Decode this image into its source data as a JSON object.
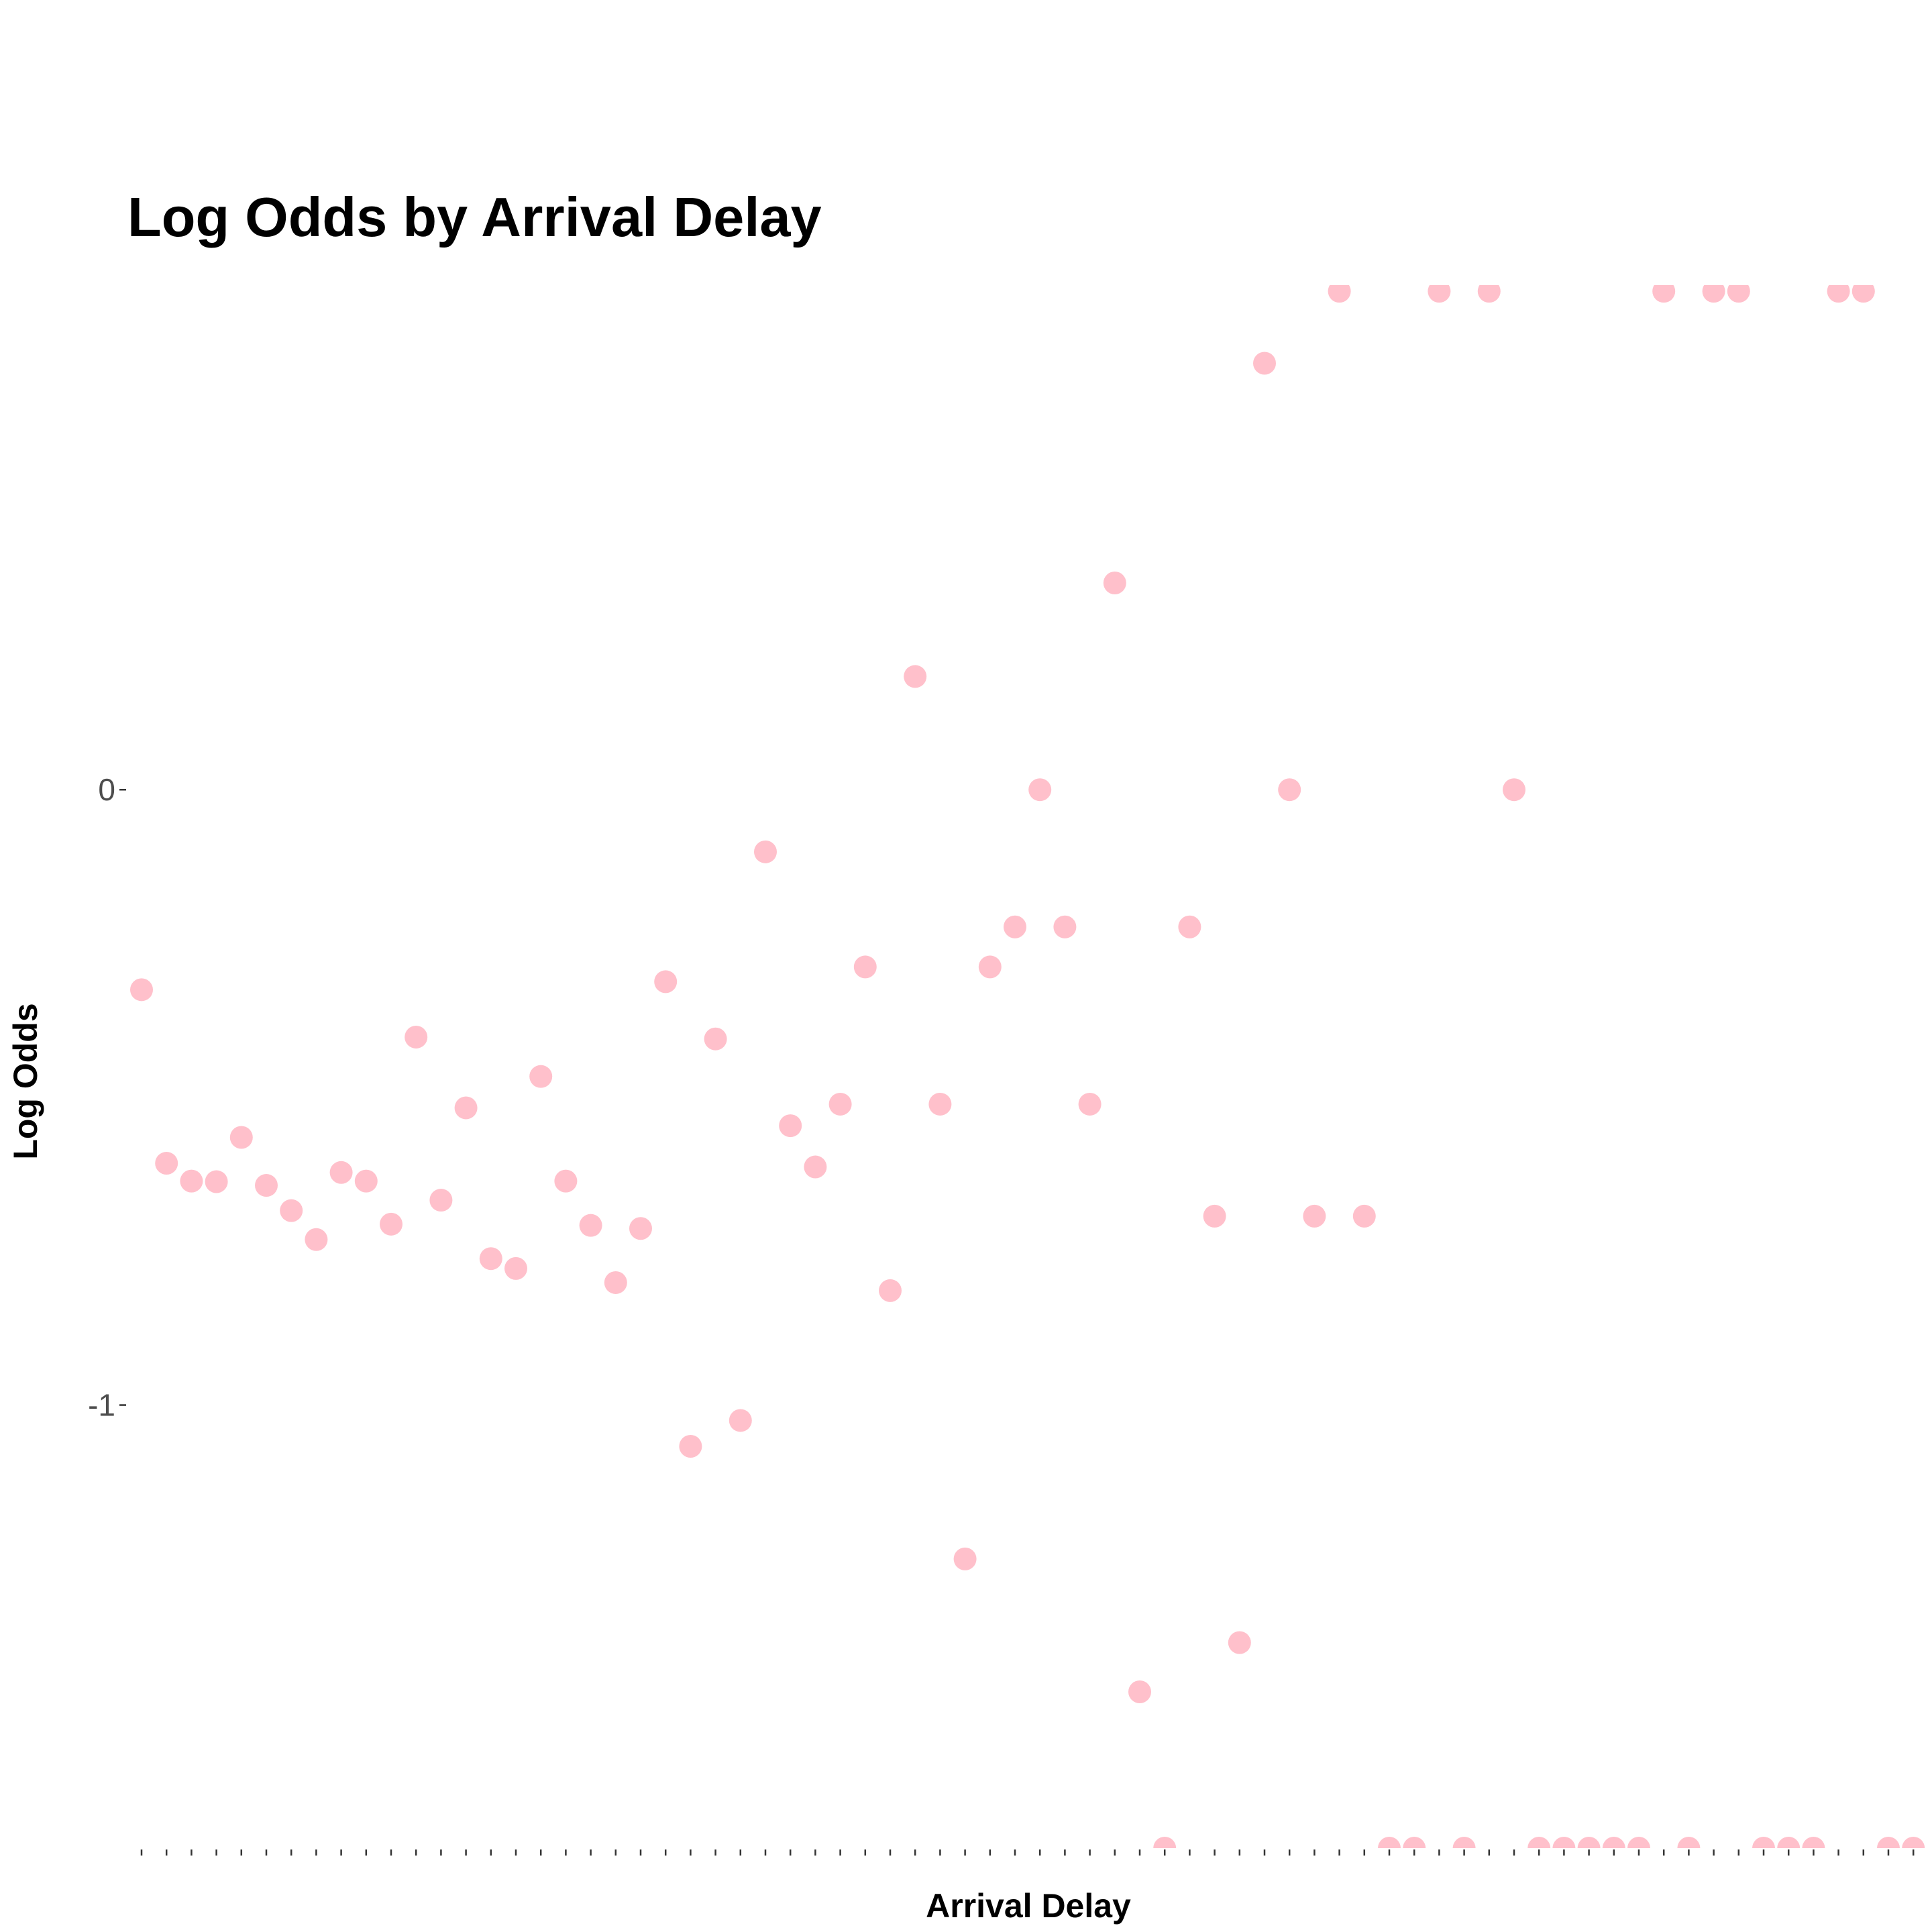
{
  "chart_data": {
    "type": "scatter",
    "title": "Log Odds by Arrival Delay",
    "xlabel": "Arrival Delay",
    "ylabel": "Log Odds",
    "x_tick_labels_shown": false,
    "x_categories_count": 72,
    "ylim": [
      -1.72,
      0.82
    ],
    "y_ticks": [
      {
        "value": 0,
        "label": "0"
      },
      {
        "value": -1,
        "label": "-1"
      }
    ],
    "grid": false,
    "legend": "none",
    "point_color": "#ffc0cb",
    "x": [
      1,
      2,
      3,
      4,
      5,
      6,
      7,
      8,
      9,
      10,
      11,
      12,
      13,
      14,
      15,
      16,
      17,
      18,
      19,
      20,
      21,
      22,
      23,
      24,
      25,
      26,
      27,
      28,
      29,
      30,
      31,
      32,
      33,
      34,
      35,
      36,
      37,
      38,
      39,
      40,
      41,
      42,
      43,
      44,
      45,
      46,
      47,
      48,
      49,
      50,
      51,
      52,
      53,
      54,
      55,
      56,
      57,
      58,
      59,
      60,
      61,
      62,
      63,
      64,
      65,
      66,
      67,
      68,
      69,
      70,
      71,
      72
    ],
    "y": [
      -0.325,
      -0.607,
      -0.636,
      -0.637,
      -0.565,
      -0.643,
      -0.684,
      -0.731,
      -0.622,
      -0.636,
      -0.706,
      -0.402,
      -0.667,
      -0.517,
      -0.762,
      -0.778,
      -0.466,
      -0.636,
      -0.708,
      -0.801,
      -0.713,
      -0.312,
      -1.067,
      -0.405,
      -1.025,
      -0.101,
      -0.546,
      -0.613,
      -0.511,
      -0.288,
      -0.814,
      0.184,
      -0.511,
      -1.25,
      -0.288,
      -0.223,
      0.0,
      -0.223,
      -0.511,
      0.336,
      -1.466,
      -1.72,
      -0.223,
      -0.693,
      -1.386,
      0.693,
      0.0,
      -0.693,
      0.81,
      -0.693,
      -1.72,
      -1.72,
      0.81,
      -1.72,
      0.81,
      0.0,
      -1.72,
      -1.72,
      -1.72,
      -1.72,
      -1.72,
      0.81,
      -1.72,
      0.81,
      0.81,
      -1.72,
      -1.72,
      -1.72,
      0.81,
      0.81,
      -1.72,
      -1.72
    ]
  }
}
